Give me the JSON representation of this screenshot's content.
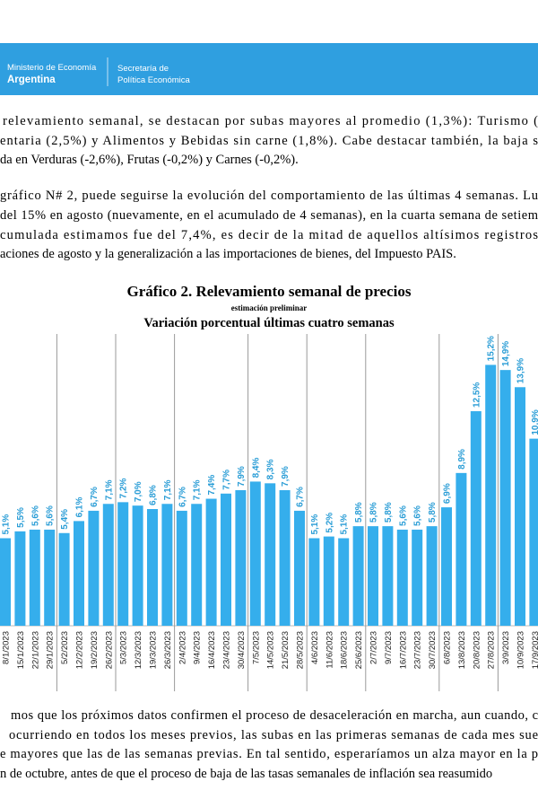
{
  "header": {
    "org": [
      "Ministerio de Economía",
      "Argentina"
    ],
    "unit": [
      "Secretaría de",
      "Política Económica"
    ]
  },
  "paragraphs": [
    {
      "lines": [
        "relevamiento semanal, se destacan por subas mayores al promedio (1,3%): Turismo (",
        "entaria (2,5%) y Alimentos y Bebidas sin carne (1,8%). Cabe destacar también, la baja s",
        "da en Verduras (-2,6%), Frutas (-0,2%) y Carnes (-0,2%)."
      ]
    },
    {
      "lines": [
        "gráfico N# 2, puede seguirse la evolución del comportamiento de las últimas 4 semanas. Lu",
        "del 15% en agosto (nuevamente, en el acumulado de 4 semanas), en la cuarta semana de setiem",
        "cumulada estimamos fue del 7,4%, es decir de la mitad de aquellos altísimos registros",
        "aciones de agosto y la generalización a las importaciones de bienes, del Impuesto PAIS."
      ]
    },
    {
      "lines": [
        "mos que los próximos datos confirmen el proceso de desaceleración en marcha, aun cuando, c",
        "ocurriendo en todos los meses previos, las subas en las primeras semanas de cada mes sue",
        "e mayores que las de las semanas previas. En tal sentido, esperaríamos un alza mayor en la p",
        "n de octubre, antes de que el proceso de baja de las tasas semanales de inflación sea reasumido"
      ]
    }
  ],
  "chart_data": {
    "type": "bar",
    "title": "Gráfico 2. Relevamiento semanal de precios",
    "note": "estimación preliminar",
    "subtitle": "Variación porcentual últimas cuatro semanas",
    "categories": [
      "8/1/2023",
      "15/1/2023",
      "22/1/2023",
      "29/1/2023",
      "5/2/2023",
      "12/2/2023",
      "19/2/2023",
      "26/2/2023",
      "5/3/2023",
      "12/3/2023",
      "19/3/2023",
      "26/3/2023",
      "2/4/2023",
      "9/4/2023",
      "16/4/2023",
      "23/4/2023",
      "30/4/2023",
      "7/5/2023",
      "14/5/2023",
      "21/5/2023",
      "28/5/2023",
      "4/6/2023",
      "11/6/2023",
      "18/6/2023",
      "25/6/2023",
      "2/7/2023",
      "9/7/2023",
      "16/7/2023",
      "23/7/2023",
      "30/7/2023",
      "6/8/2023",
      "13/8/2023",
      "20/8/2023",
      "27/8/2023",
      "3/9/2023",
      "10/9/2023",
      "17/9/2023"
    ],
    "values": [
      5.1,
      5.5,
      5.6,
      5.6,
      5.4,
      6.1,
      6.7,
      7.1,
      7.2,
      7.0,
      6.8,
      7.1,
      6.7,
      7.1,
      7.4,
      7.7,
      7.9,
      8.4,
      8.3,
      7.9,
      6.7,
      5.1,
      5.2,
      5.1,
      5.8,
      5.8,
      5.8,
      5.6,
      5.6,
      5.8,
      6.9,
      8.9,
      12.5,
      15.2,
      14.9,
      13.9,
      10.9
    ],
    "value_labels": [
      "5,1%",
      "5,5%",
      "5,6%",
      "5,6%",
      "5,4%",
      "6,1%",
      "6,7%",
      "7,1%",
      "7,2%",
      "7,0%",
      "6,8%",
      "7,1%",
      "6,7%",
      "7,1%",
      "7,4%",
      "7,7%",
      "7,9%",
      "8,4%",
      "8,3%",
      "7,9%",
      "6,7%",
      "5,1%",
      "5,2%",
      "5,1%",
      "5,8%",
      "5,8%",
      "5,8%",
      "5,6%",
      "5,6%",
      "5,8%",
      "6,9%",
      "8,9%",
      "12,5%",
      "15,2%",
      "14,9%",
      "13,9%",
      "10,9%"
    ],
    "color": "#35aeec",
    "label_color": "#2a9dd6",
    "ylim": [
      0,
      17
    ]
  }
}
